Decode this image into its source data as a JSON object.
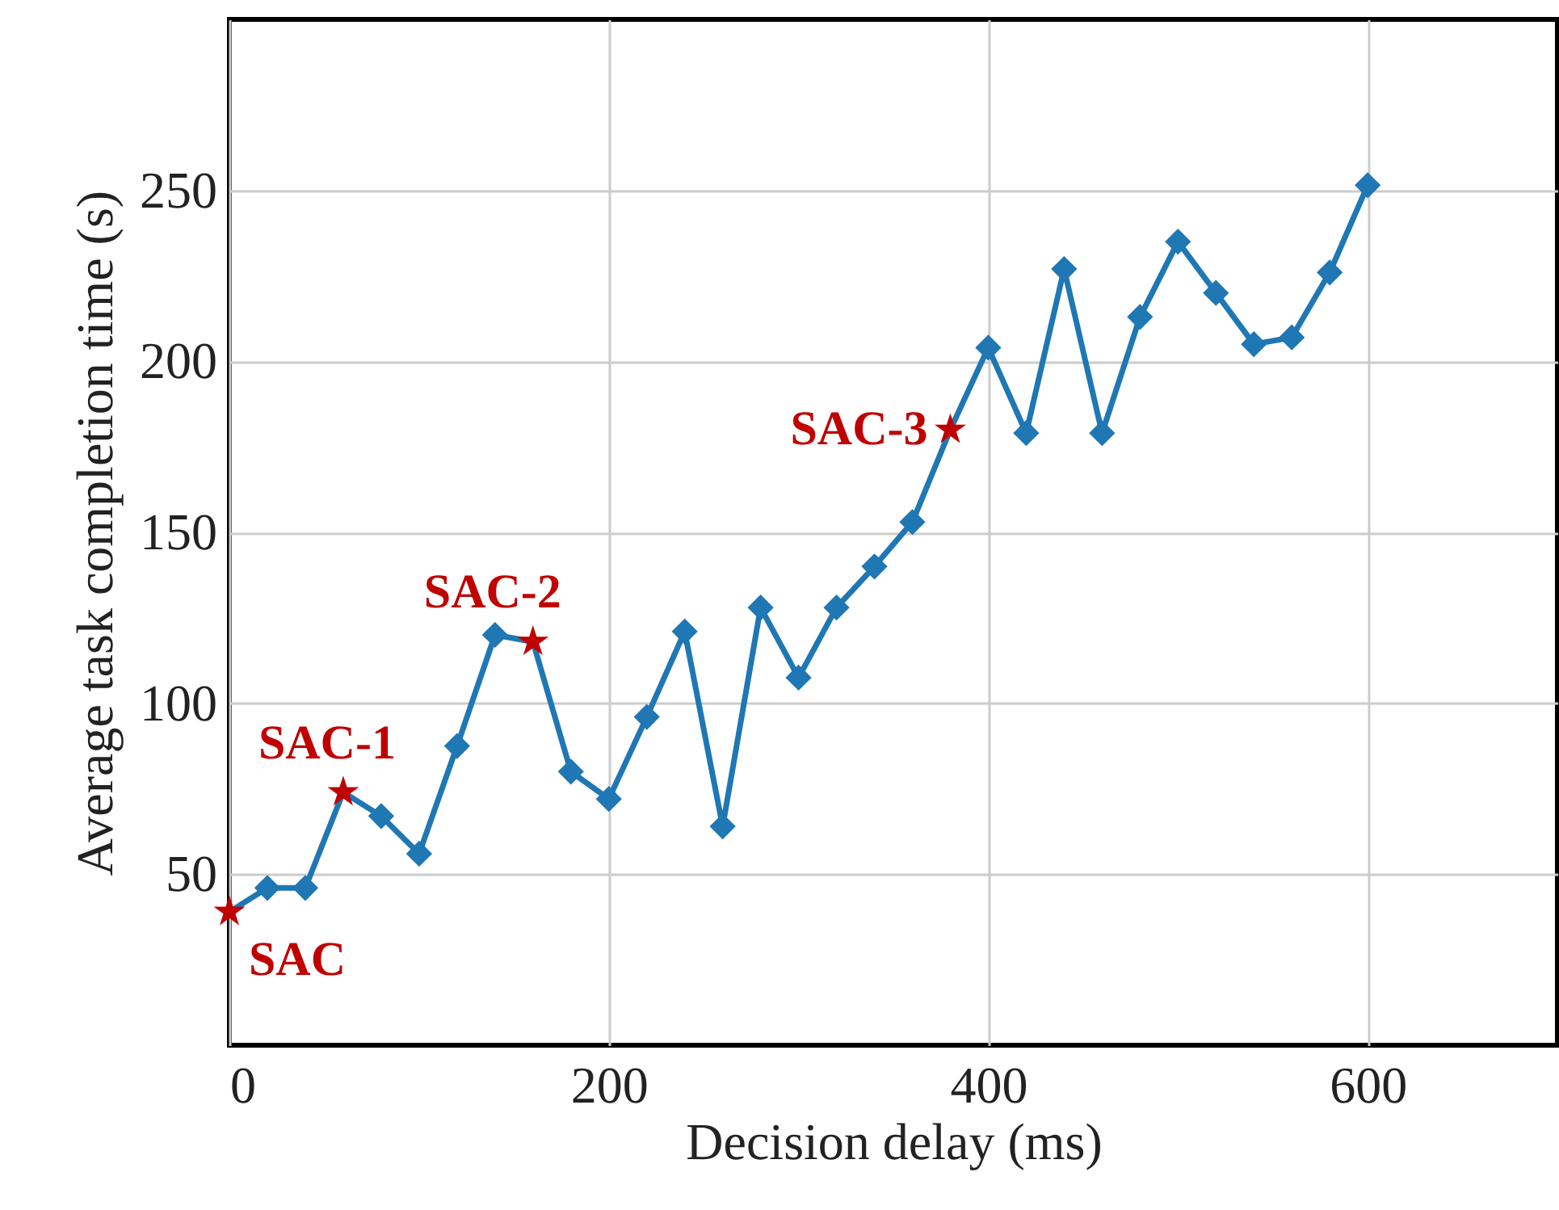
{
  "chart_data": {
    "type": "line",
    "xlabel": "Decision delay (ms)",
    "ylabel": "Average task completion time (s)",
    "x": [
      0,
      20,
      40,
      60,
      80,
      100,
      120,
      140,
      160,
      180,
      200,
      220,
      240,
      260,
      280,
      300,
      320,
      340,
      360,
      380,
      400,
      420,
      440,
      460,
      480,
      500,
      520,
      540,
      560,
      580,
      600
    ],
    "series": [
      {
        "color": "#1f77b4",
        "marker": "none",
        "values": [
          39,
          46,
          46,
          74,
          67,
          56,
          87.5,
          120,
          118,
          80,
          72,
          96,
          121,
          64,
          128,
          107.5,
          128,
          140,
          153,
          180,
          204,
          179,
          227,
          179,
          213,
          235,
          220,
          205,
          207,
          226,
          251.5
        ]
      },
      {
        "type": "scatter",
        "color": "#1f77b4",
        "marker": "diamond",
        "values": [
          null,
          46,
          46,
          null,
          67,
          56,
          87.5,
          120,
          null,
          80,
          72,
          96,
          121,
          64,
          128,
          107.5,
          128,
          140,
          153,
          null,
          204,
          179,
          227,
          179,
          213,
          235,
          220,
          205,
          207,
          226,
          251.5
        ]
      },
      {
        "type": "scatter",
        "color": "#c00000",
        "marker": "star",
        "values": [
          39,
          null,
          null,
          74,
          null,
          null,
          null,
          null,
          118,
          null,
          null,
          null,
          null,
          null,
          null,
          null,
          null,
          null,
          null,
          180,
          null,
          null,
          null,
          null,
          null,
          null,
          null,
          null,
          null,
          null,
          null
        ]
      }
    ],
    "annotations": [
      {
        "text": "SAC",
        "x": 0,
        "y": 39
      },
      {
        "text": "SAC-1",
        "x": 60,
        "y": 74
      },
      {
        "text": "SAC-2",
        "x": 160,
        "y": 118
      },
      {
        "text": "SAC-3",
        "x": 380,
        "y": 180
      }
    ],
    "xlim": [
      0,
      700
    ],
    "xticks": [
      0,
      200,
      400,
      600
    ],
    "ylim": [
      0,
      300
    ],
    "yticks": [
      50,
      100,
      150,
      200,
      250
    ],
    "grid": true
  }
}
